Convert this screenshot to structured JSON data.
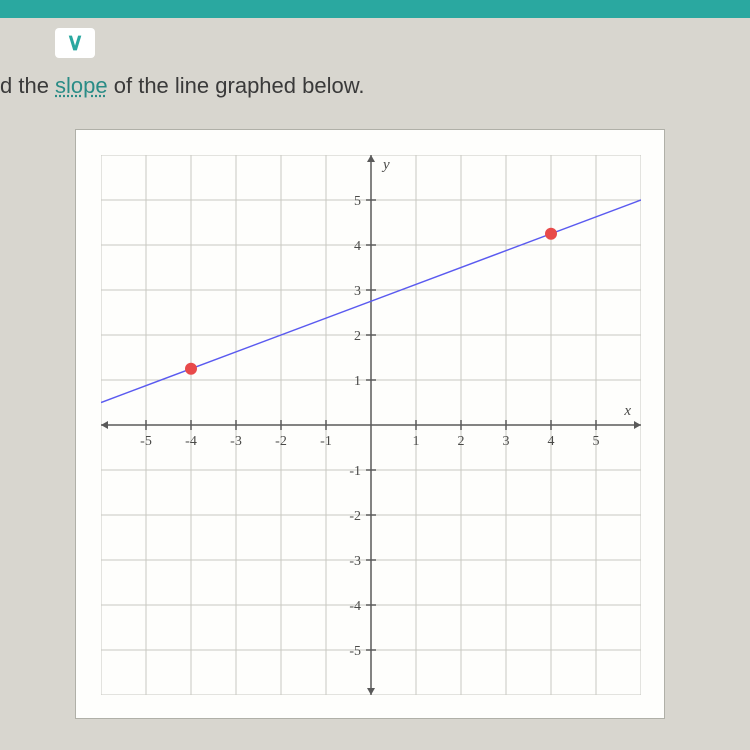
{
  "top_bar_color": "#2aa8a0",
  "question": {
    "prefix": "d the ",
    "link_text": "slope",
    "suffix": " of the line graphed below."
  },
  "chart": {
    "type": "line",
    "background_color": "#fefefc",
    "grid_color": "#d8d8d2",
    "grid_major_color": "#c8c8c2",
    "axis_color": "#5a5a5a",
    "x_axis_label": "x",
    "y_axis_label": "y",
    "xlim": [
      -6,
      6
    ],
    "ylim": [
      -6,
      6
    ],
    "x_ticks": [
      -5,
      -4,
      -3,
      -2,
      -1,
      1,
      2,
      3,
      4,
      5
    ],
    "y_ticks": [
      -5,
      -4,
      -3,
      -2,
      -1,
      1,
      2,
      3,
      4,
      5
    ],
    "tick_fontsize": 14,
    "label_fontsize": 15,
    "line": {
      "color": "#5a5af0",
      "width": 1.5,
      "p1": [
        -6,
        0.5
      ],
      "p2": [
        6,
        5
      ]
    },
    "points": [
      {
        "x": -4,
        "y": 1.25,
        "color": "#e84a4a",
        "radius": 6
      },
      {
        "x": 4,
        "y": 4.25,
        "color": "#e84a4a",
        "radius": 6
      }
    ]
  }
}
